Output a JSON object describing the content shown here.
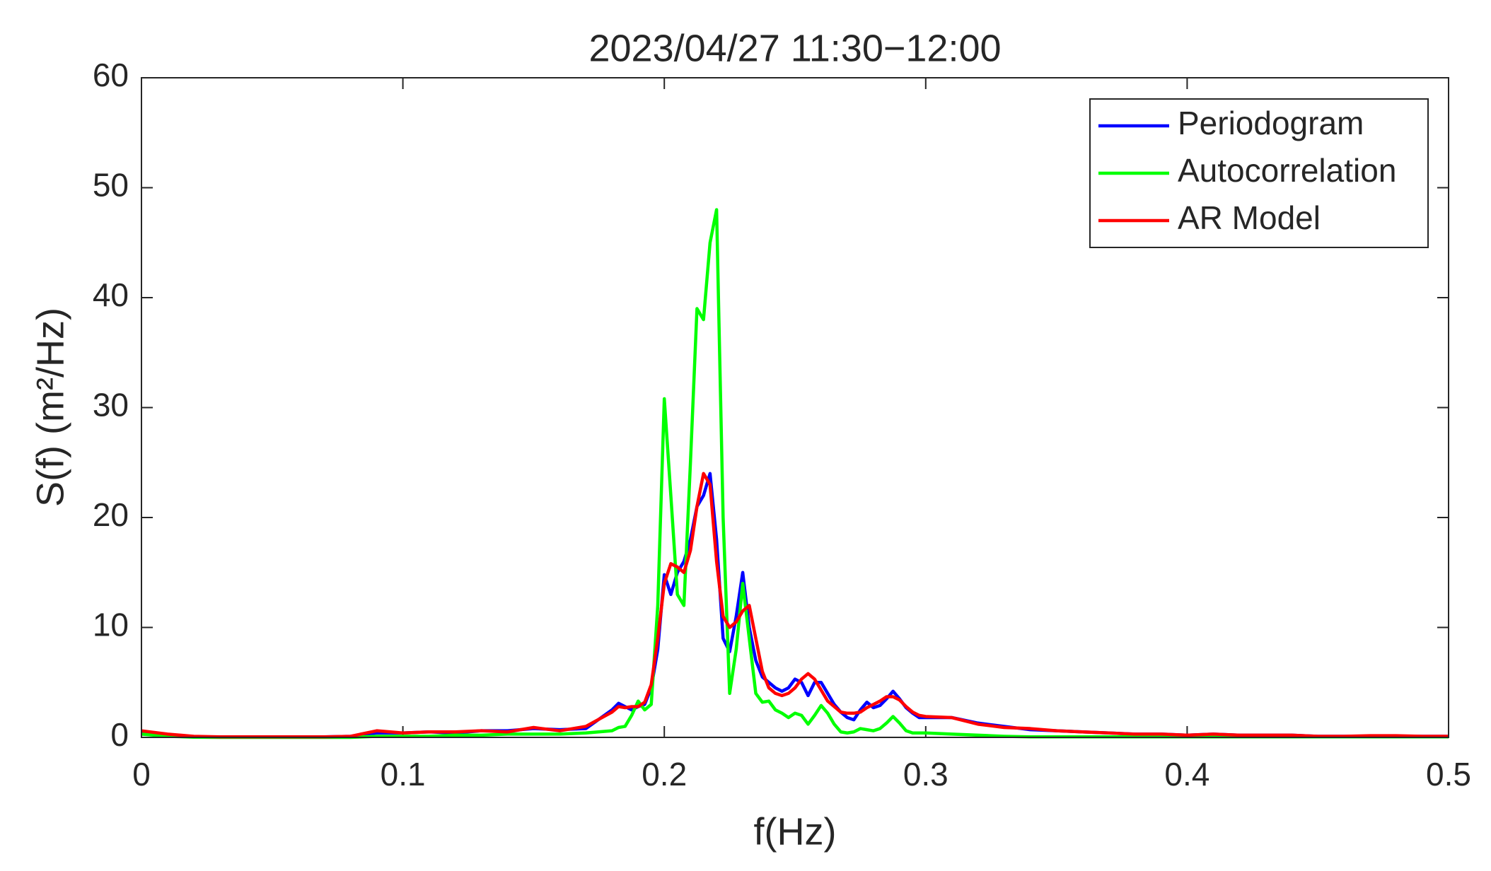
{
  "chart_data": {
    "type": "line",
    "title": "2023/04/27 11:30−12:00",
    "x_label": "f(Hz)",
    "y_label": "S(f) (m²/Hz)",
    "x": [
      0,
      0.01,
      0.02,
      0.03,
      0.04,
      0.05,
      0.06,
      0.07,
      0.08,
      0.09,
      0.1,
      0.11,
      0.12,
      0.13,
      0.14,
      0.15,
      0.16,
      0.17,
      0.18,
      0.1825,
      0.185,
      0.1875,
      0.19,
      0.1925,
      0.195,
      0.1975,
      0.2,
      0.2025,
      0.205,
      0.2075,
      0.21,
      0.2125,
      0.215,
      0.2175,
      0.22,
      0.2225,
      0.225,
      0.2275,
      0.23,
      0.2325,
      0.235,
      0.2375,
      0.24,
      0.2425,
      0.245,
      0.2475,
      0.25,
      0.2525,
      0.255,
      0.2575,
      0.26,
      0.2625,
      0.265,
      0.2675,
      0.27,
      0.2725,
      0.275,
      0.2775,
      0.28,
      0.2825,
      0.285,
      0.2875,
      0.29,
      0.2925,
      0.295,
      0.2975,
      0.3,
      0.31,
      0.32,
      0.33,
      0.34,
      0.35,
      0.36,
      0.37,
      0.38,
      0.39,
      0.4,
      0.41,
      0.42,
      0.43,
      0.44,
      0.45,
      0.46,
      0.47,
      0.48,
      0.49,
      0.5
    ],
    "series": [
      {
        "name": "Periodogram",
        "color": "#0000ff",
        "values": [
          0.5,
          0.2,
          0.05,
          0.02,
          0.02,
          0.02,
          0.02,
          0.05,
          0.1,
          0.4,
          0.4,
          0.5,
          0.4,
          0.6,
          0.6,
          0.8,
          0.7,
          0.8,
          2.5,
          3.1,
          2.8,
          2.5,
          2.8,
          3.0,
          4.5,
          8,
          14.8,
          13,
          15,
          16,
          18,
          21,
          22,
          24,
          18,
          9,
          7.8,
          11,
          15,
          10,
          7,
          5.5,
          5,
          4.5,
          4.2,
          4.5,
          5.3,
          5,
          3.8,
          5,
          5,
          4,
          3,
          2.3,
          1.8,
          1.6,
          2.5,
          3.2,
          2.7,
          2.9,
          3.5,
          4.2,
          3.5,
          2.7,
          2.2,
          1.8,
          1.8,
          1.8,
          1.3,
          1.0,
          0.7,
          0.6,
          0.5,
          0.4,
          0.3,
          0.3,
          0.2,
          0.3,
          0.2,
          0.2,
          0.2,
          0.1,
          0.1,
          0.1,
          0.1,
          0.1,
          0.1
        ]
      },
      {
        "name": "Autocorrelation",
        "color": "#00ff00",
        "values": [
          0.3,
          0.1,
          0.02,
          0,
          0,
          0,
          0,
          0,
          0,
          0.1,
          0.1,
          0.1,
          0.2,
          0.2,
          0.3,
          0.3,
          0.3,
          0.4,
          0.6,
          0.9,
          1.0,
          2,
          3.3,
          2.5,
          3.0,
          12,
          30.8,
          22,
          13,
          12,
          25,
          39,
          38,
          45,
          48,
          20,
          4,
          8,
          14,
          9,
          4,
          3.2,
          3.3,
          2.5,
          2.2,
          1.8,
          2.2,
          2,
          1.2,
          2,
          2.9,
          2.2,
          1.2,
          0.5,
          0.4,
          0.5,
          0.8,
          0.7,
          0.6,
          0.8,
          1.3,
          1.9,
          1.3,
          0.6,
          0.4,
          0.4,
          0.4,
          0.3,
          0.2,
          0.1,
          0.05,
          0.05,
          0.05,
          0.05,
          0.05,
          0.05,
          0.05,
          0.05,
          0.05,
          0.05,
          0.05,
          0.05,
          0.05,
          0.05,
          0.05,
          0.05,
          0.05
        ]
      },
      {
        "name": "AR Model",
        "color": "#ff0000",
        "values": [
          0.6,
          0.3,
          0.1,
          0.05,
          0.05,
          0.05,
          0.05,
          0.05,
          0.1,
          0.6,
          0.4,
          0.5,
          0.5,
          0.6,
          0.5,
          0.9,
          0.6,
          1.0,
          2.3,
          2.8,
          2.7,
          2.8,
          2.8,
          3.2,
          4.8,
          9,
          14,
          15.8,
          15.5,
          15,
          17,
          21,
          24,
          23,
          16,
          11,
          10,
          10.5,
          11.5,
          12,
          9,
          6,
          4.5,
          4,
          3.8,
          4,
          4.5,
          5.3,
          5.8,
          5.3,
          4.3,
          3.3,
          2.8,
          2.3,
          2.2,
          2.2,
          2.3,
          2.7,
          3,
          3.3,
          3.7,
          3.7,
          3.4,
          2.8,
          2.3,
          2,
          1.9,
          1.8,
          1.2,
          0.9,
          0.8,
          0.6,
          0.5,
          0.4,
          0.3,
          0.3,
          0.2,
          0.3,
          0.2,
          0.2,
          0.2,
          0.1,
          0.1,
          0.15,
          0.15,
          0.1,
          0.1
        ]
      }
    ],
    "xlim": [
      0,
      0.5
    ],
    "xticks": [
      0,
      0.1,
      0.2,
      0.3,
      0.4,
      0.5
    ],
    "ylim": [
      0,
      60
    ],
    "yticks": [
      0,
      10,
      20,
      30,
      40,
      50,
      60
    ],
    "legend": "upper right"
  }
}
